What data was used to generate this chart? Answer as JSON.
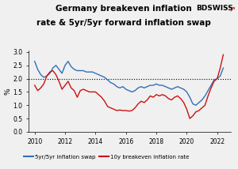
{
  "title_line1": "Germany breakeven inflation",
  "title_line2": "rate & 5yr/5yr forward inflation swap",
  "logo_text": "BDSWISS",
  "logo_arrow": "↗",
  "ylabel": "%",
  "ylim": [
    0.0,
    3.05
  ],
  "yticks": [
    0.0,
    0.5,
    1.0,
    1.5,
    2.0,
    2.5,
    3.0
  ],
  "xlim": [
    2009.6,
    2022.9
  ],
  "xticks": [
    2010,
    2012,
    2014,
    2016,
    2018,
    2020,
    2022
  ],
  "hline_y": 2.0,
  "blue_color": "#3070b8",
  "red_color": "#cc1111",
  "logo_color": "#cc2200",
  "legend_labels": [
    "5yr/5yr inflation swap",
    "10y breakeven inflation rate"
  ],
  "background_color": "#f0f0f0",
  "blue_series": [
    [
      2010.0,
      2.65
    ],
    [
      2010.2,
      2.35
    ],
    [
      2010.4,
      2.15
    ],
    [
      2010.6,
      2.05
    ],
    [
      2010.8,
      2.1
    ],
    [
      2011.0,
      2.2
    ],
    [
      2011.2,
      2.4
    ],
    [
      2011.4,
      2.5
    ],
    [
      2011.6,
      2.35
    ],
    [
      2011.8,
      2.2
    ],
    [
      2012.0,
      2.5
    ],
    [
      2012.2,
      2.65
    ],
    [
      2012.4,
      2.45
    ],
    [
      2012.6,
      2.35
    ],
    [
      2012.8,
      2.3
    ],
    [
      2013.0,
      2.3
    ],
    [
      2013.2,
      2.3
    ],
    [
      2013.4,
      2.25
    ],
    [
      2013.6,
      2.25
    ],
    [
      2013.8,
      2.25
    ],
    [
      2014.0,
      2.2
    ],
    [
      2014.2,
      2.15
    ],
    [
      2014.4,
      2.1
    ],
    [
      2014.6,
      2.05
    ],
    [
      2014.8,
      1.95
    ],
    [
      2015.0,
      1.85
    ],
    [
      2015.2,
      1.8
    ],
    [
      2015.4,
      1.7
    ],
    [
      2015.6,
      1.65
    ],
    [
      2015.8,
      1.7
    ],
    [
      2016.0,
      1.6
    ],
    [
      2016.2,
      1.55
    ],
    [
      2016.4,
      1.5
    ],
    [
      2016.6,
      1.55
    ],
    [
      2016.8,
      1.65
    ],
    [
      2017.0,
      1.7
    ],
    [
      2017.2,
      1.65
    ],
    [
      2017.4,
      1.7
    ],
    [
      2017.6,
      1.75
    ],
    [
      2017.8,
      1.75
    ],
    [
      2018.0,
      1.8
    ],
    [
      2018.2,
      1.75
    ],
    [
      2018.4,
      1.75
    ],
    [
      2018.6,
      1.7
    ],
    [
      2018.8,
      1.65
    ],
    [
      2019.0,
      1.6
    ],
    [
      2019.2,
      1.65
    ],
    [
      2019.4,
      1.7
    ],
    [
      2019.6,
      1.65
    ],
    [
      2019.8,
      1.6
    ],
    [
      2020.0,
      1.5
    ],
    [
      2020.2,
      1.3
    ],
    [
      2020.4,
      1.05
    ],
    [
      2020.6,
      1.0
    ],
    [
      2020.8,
      1.1
    ],
    [
      2021.0,
      1.2
    ],
    [
      2021.2,
      1.35
    ],
    [
      2021.4,
      1.55
    ],
    [
      2021.6,
      1.75
    ],
    [
      2021.8,
      1.95
    ],
    [
      2022.0,
      2.0
    ],
    [
      2022.2,
      2.1
    ],
    [
      2022.4,
      2.4
    ]
  ],
  "red_series": [
    [
      2010.0,
      1.75
    ],
    [
      2010.2,
      1.55
    ],
    [
      2010.4,
      1.65
    ],
    [
      2010.6,
      1.8
    ],
    [
      2010.8,
      2.1
    ],
    [
      2011.0,
      2.25
    ],
    [
      2011.2,
      2.3
    ],
    [
      2011.4,
      2.15
    ],
    [
      2011.6,
      1.9
    ],
    [
      2011.8,
      1.6
    ],
    [
      2012.0,
      1.75
    ],
    [
      2012.2,
      1.9
    ],
    [
      2012.4,
      1.65
    ],
    [
      2012.6,
      1.55
    ],
    [
      2012.8,
      1.3
    ],
    [
      2013.0,
      1.55
    ],
    [
      2013.2,
      1.6
    ],
    [
      2013.4,
      1.55
    ],
    [
      2013.6,
      1.5
    ],
    [
      2013.8,
      1.5
    ],
    [
      2014.0,
      1.5
    ],
    [
      2014.2,
      1.4
    ],
    [
      2014.4,
      1.3
    ],
    [
      2014.6,
      1.15
    ],
    [
      2014.8,
      0.95
    ],
    [
      2015.0,
      0.9
    ],
    [
      2015.2,
      0.85
    ],
    [
      2015.4,
      0.8
    ],
    [
      2015.6,
      0.82
    ],
    [
      2015.8,
      0.8
    ],
    [
      2016.0,
      0.8
    ],
    [
      2016.2,
      0.78
    ],
    [
      2016.4,
      0.8
    ],
    [
      2016.6,
      0.9
    ],
    [
      2016.8,
      1.05
    ],
    [
      2017.0,
      1.15
    ],
    [
      2017.2,
      1.1
    ],
    [
      2017.4,
      1.2
    ],
    [
      2017.6,
      1.35
    ],
    [
      2017.8,
      1.3
    ],
    [
      2018.0,
      1.4
    ],
    [
      2018.2,
      1.35
    ],
    [
      2018.4,
      1.4
    ],
    [
      2018.6,
      1.35
    ],
    [
      2018.8,
      1.25
    ],
    [
      2019.0,
      1.2
    ],
    [
      2019.2,
      1.3
    ],
    [
      2019.4,
      1.35
    ],
    [
      2019.6,
      1.25
    ],
    [
      2019.8,
      1.1
    ],
    [
      2020.0,
      0.85
    ],
    [
      2020.2,
      0.5
    ],
    [
      2020.4,
      0.6
    ],
    [
      2020.6,
      0.75
    ],
    [
      2020.8,
      0.8
    ],
    [
      2021.0,
      0.9
    ],
    [
      2021.2,
      1.0
    ],
    [
      2021.4,
      1.35
    ],
    [
      2021.6,
      1.65
    ],
    [
      2021.8,
      1.9
    ],
    [
      2022.0,
      2.0
    ],
    [
      2022.2,
      2.4
    ],
    [
      2022.4,
      2.9
    ]
  ]
}
